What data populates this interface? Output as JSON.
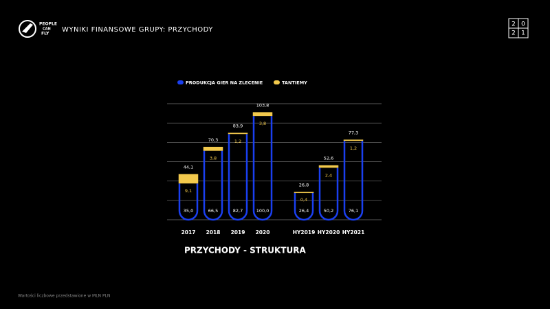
{
  "header": {
    "logo": [
      "PEOPLE",
      "CAN",
      "FLY"
    ],
    "title": "WYNIKI FINANSOWE GRUPY: PRZYCHODY",
    "year_badge": [
      "2",
      "0",
      "2",
      "1"
    ]
  },
  "chart_data": {
    "type": "stacked_bar",
    "subtitle": "PRZYCHODY - STRUKTURA",
    "categories": [
      "2017",
      "2018",
      "2019",
      "2020",
      null,
      "HY2019",
      "HY2020",
      "HY2021"
    ],
    "series": [
      {
        "name": "PRODUKCJA GIER NA ZLECENIE",
        "color": "#1a3ff0",
        "values": [
          35.0,
          66.5,
          82.7,
          100.0,
          null,
          26.4,
          50.2,
          76.1
        ],
        "value_labels": [
          "35,0",
          "66,5",
          "82,7",
          "100,0",
          null,
          "26,4",
          "50,2",
          "76,1"
        ]
      },
      {
        "name": "TANTIEMY",
        "color": "#f2c94c",
        "values": [
          9.1,
          3.8,
          1.2,
          3.8,
          null,
          0.4,
          2.4,
          1.2
        ],
        "value_labels": [
          "9,1",
          "3,8",
          "1,2",
          "3,8",
          null,
          "0,4",
          "2,4",
          "1,2"
        ]
      }
    ],
    "totals": [
      44.1,
      70.3,
      83.9,
      103.8,
      null,
      26.8,
      52.6,
      77.3
    ],
    "total_labels": [
      "44,1",
      "70,3",
      "83,9",
      "103,8",
      null,
      "26,8",
      "52,6",
      "77,3"
    ],
    "ylim": [
      0,
      112
    ],
    "grid": true
  },
  "footnote": "Wartości liczbowe przedstawione w MLN PLN"
}
